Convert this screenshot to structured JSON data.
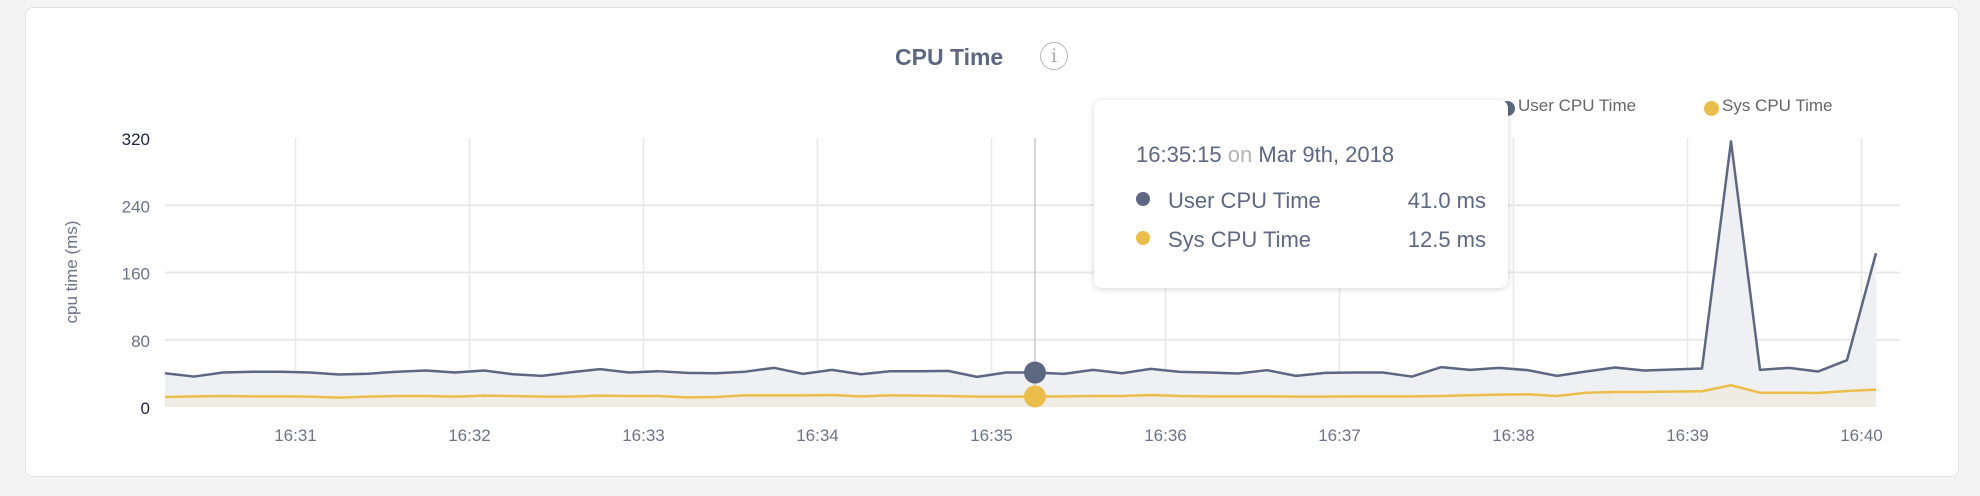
{
  "panel": {
    "title": "CPU Time",
    "info_icon": "info-circle-icon"
  },
  "legend": [
    {
      "label": "User CPU Time",
      "color": "#5d6782"
    },
    {
      "label": "Sys CPU Time",
      "color": "#ebbd4a"
    }
  ],
  "tooltip": {
    "time": "16:35:15",
    "on": "on",
    "date": "Mar 9th, 2018",
    "rows": [
      {
        "label": "User CPU Time",
        "value": "41.0 ms",
        "color": "#5d6782"
      },
      {
        "label": "Sys CPU Time",
        "value": "12.5 ms",
        "color": "#ebbd4a"
      }
    ]
  },
  "chart_data": {
    "type": "area",
    "title": "CPU Time",
    "xlabel": "",
    "ylabel": "cpu time (ms)",
    "ylim": [
      0,
      320
    ],
    "yticks": [
      "0",
      "80",
      "160",
      "240",
      "320"
    ],
    "xticks": [
      "16:31",
      "16:32",
      "16:33",
      "16:34",
      "16:35",
      "16:36",
      "16:37",
      "16:38",
      "16:39",
      "16:40"
    ],
    "x_start": "16:30:15",
    "x_step_seconds": 10,
    "grid": true,
    "legend_position": "top-right",
    "hover_index": 30,
    "series": [
      {
        "name": "User CPU Time",
        "color": "#5d6782",
        "values": [
          40.2,
          36.2,
          41,
          42,
          42,
          41,
          38.6,
          39.6,
          42,
          43.4,
          41,
          43.4,
          39,
          37,
          41.4,
          45,
          41,
          42.6,
          40.6,
          40.2,
          42,
          46.6,
          39.4,
          44.2,
          39,
          42.6,
          42.6,
          43,
          35.8,
          41,
          41,
          39.4,
          44.2,
          40.2,
          45.4,
          41.8,
          41,
          39.8,
          43.8,
          37,
          40.6,
          41,
          41,
          36.2,
          47.4,
          44.2,
          46.6,
          43.8,
          37,
          42.2,
          47,
          43.4,
          44.6,
          45.8,
          316,
          44.2,
          46.6,
          42.2,
          55.7,
          183
        ]
      },
      {
        "name": "Sys CPU Time",
        "color": "#ebbd4a",
        "values": [
          11.9,
          12.7,
          13.1,
          12.7,
          12.7,
          12.3,
          11.1,
          12.3,
          13.1,
          13.1,
          12.3,
          13.5,
          13.1,
          12.3,
          12.3,
          13.5,
          13.1,
          13.1,
          11.5,
          11.9,
          13.9,
          13.9,
          13.9,
          14.3,
          12.7,
          13.9,
          13.5,
          13.1,
          12.3,
          12.3,
          12.5,
          12.7,
          13.1,
          13.1,
          14.3,
          13.1,
          12.7,
          12.7,
          12.7,
          12.3,
          12.3,
          12.7,
          12.7,
          12.7,
          13.1,
          14,
          14.7,
          15.1,
          13.1,
          17,
          17.9,
          17.9,
          18.3,
          18.7,
          25.9,
          17,
          17,
          16.7,
          19,
          20.7
        ]
      }
    ]
  }
}
